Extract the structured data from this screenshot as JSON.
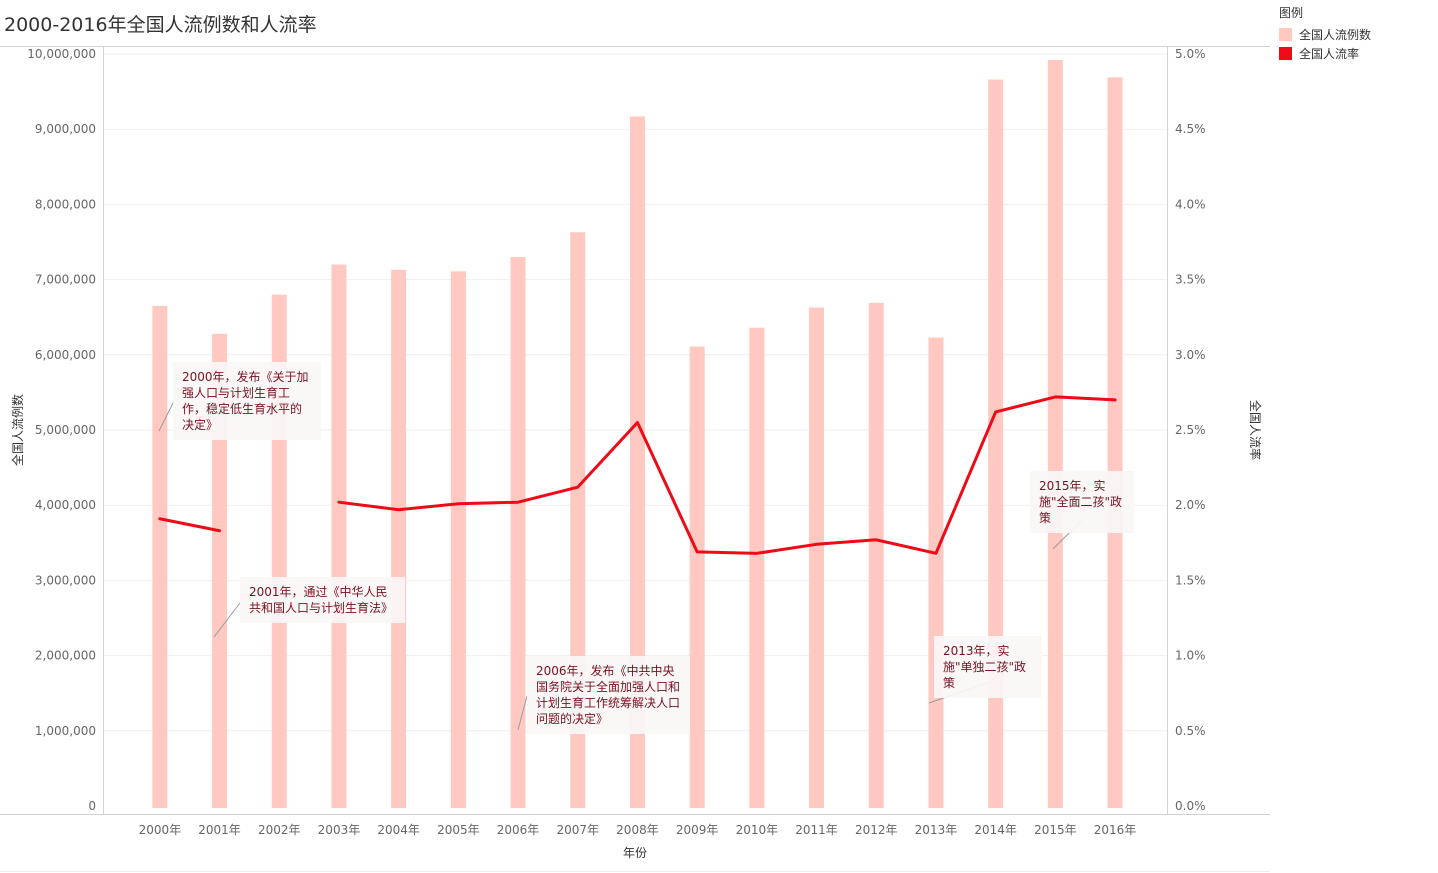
{
  "title": "2000-2016年全国人流例数和人流率",
  "legend": {
    "title": "图例",
    "items": [
      {
        "label": "全国人流例数",
        "color": "#ffc9c2"
      },
      {
        "label": "全国人流率",
        "color": "#ee0a16"
      }
    ]
  },
  "chart_data": {
    "type": "bar+line",
    "title": "2000-2016年全国人流例数和人流率",
    "xlabel": "年份",
    "ylabel_left": "全国人流例数",
    "ylabel_right": "全国人流率",
    "categories": [
      "2000年",
      "2001年",
      "2002年",
      "2003年",
      "2004年",
      "2005年",
      "2006年",
      "2007年",
      "2008年",
      "2009年",
      "2010年",
      "2011年",
      "2012年",
      "2013年",
      "2014年",
      "2015年",
      "2016年"
    ],
    "y_left": {
      "range": [
        0,
        10000000
      ],
      "ticks": [
        "0",
        "1,000,000",
        "2,000,000",
        "3,000,000",
        "4,000,000",
        "5,000,000",
        "6,000,000",
        "7,000,000",
        "8,000,000",
        "9,000,000",
        "10,000,000"
      ]
    },
    "y_right": {
      "range": [
        0,
        5.0
      ],
      "ticks": [
        "0.0%",
        "0.5%",
        "1.0%",
        "1.5%",
        "2.0%",
        "2.5%",
        "3.0%",
        "3.5%",
        "4.0%",
        "4.5%",
        "5.0%"
      ]
    },
    "grid": true,
    "legend_position": "top-right",
    "series": [
      {
        "name": "全国人流例数",
        "type": "bar",
        "axis": "left",
        "color": "#ffc9c2",
        "values": [
          6650000,
          6280000,
          6800000,
          7200000,
          7130000,
          7110000,
          7300000,
          7630000,
          9170000,
          6110000,
          6360000,
          6630000,
          6690000,
          6230000,
          9660000,
          9920000,
          9690000
        ]
      },
      {
        "name": "全国人流率",
        "type": "line",
        "axis": "right",
        "color": "#ee0a16",
        "values": [
          1.91,
          1.83,
          null,
          2.02,
          1.97,
          2.01,
          2.02,
          2.12,
          2.55,
          1.69,
          1.68,
          1.74,
          1.77,
          1.68,
          2.62,
          2.72,
          2.7
        ]
      }
    ],
    "annotations": [
      {
        "text": "2000年，发布《关于加强人口与计划生育工作，稳定低生育水平的决定》"
      },
      {
        "text": "2001年，通过《中华人民共和国人口与计划生育法》"
      },
      {
        "text": "2006年，发布《中共中央国务院关于全面加强人口和计划生育工作统筹解决人口问题的决定》"
      },
      {
        "text": "2013年，实施\"单独二孩\"政策"
      },
      {
        "text": "2015年，实施\"全面二孩\"政策"
      }
    ]
  }
}
